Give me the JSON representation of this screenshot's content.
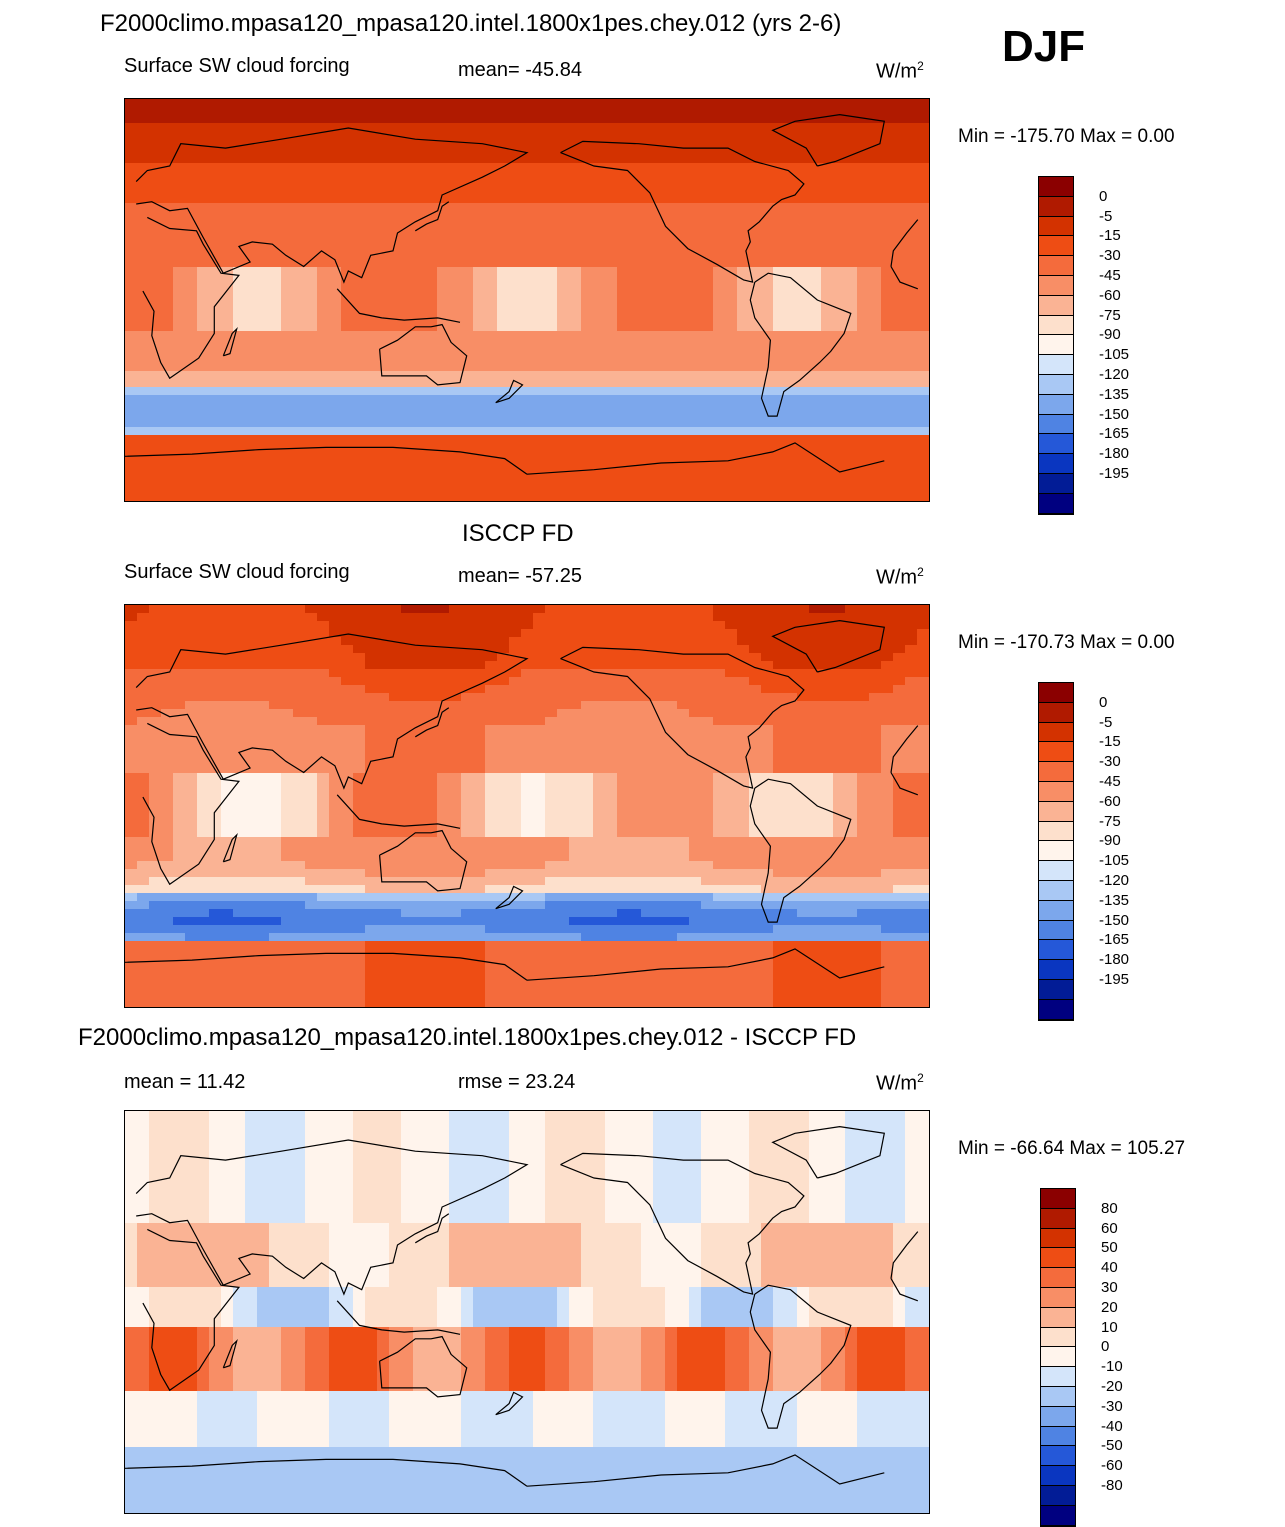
{
  "season": "DJF",
  "panels": [
    {
      "title": "F2000climo.mpasa120_mpasa120.intel.1800x1pes.chey.012 (yrs 2-6)",
      "left_label": "Surface SW cloud forcing",
      "center_label": "mean= -45.84",
      "units_base": "W/m",
      "units_sup": "2",
      "minmax": "Min = -175.70 Max =   0.00"
    },
    {
      "title": "ISCCP FD",
      "left_label": "Surface SW cloud forcing",
      "center_label": "mean= -57.25",
      "units_base": "W/m",
      "units_sup": "2",
      "minmax": "Min = -170.73 Max =   0.00"
    },
    {
      "title": "F2000climo.mpasa120_mpasa120.intel.1800x1pes.chey.012 - ISCCP FD",
      "left_label": "mean =  11.42",
      "center_label": "rmse =  23.24",
      "units_base": "W/m",
      "units_sup": "2",
      "minmax": "Min = -66.64 Max = 105.27"
    }
  ],
  "colorbar_field": {
    "labels": [
      "0",
      "-5",
      "-15",
      "-30",
      "-45",
      "-60",
      "-75",
      "-90",
      "-105",
      "-120",
      "-135",
      "-150",
      "-165",
      "-180",
      "-195"
    ],
    "colors": [
      "#8b0000",
      "#b01a00",
      "#d33200",
      "#ee4d14",
      "#f46b3c",
      "#f88e66",
      "#fab394",
      "#fde0cc",
      "#fff4ec",
      "#d4e5fa",
      "#a9c8f4",
      "#7ca7ec",
      "#4f83e3",
      "#2558d8",
      "#0a36c0",
      "#021c96",
      "#000080"
    ]
  },
  "colorbar_diff": {
    "labels": [
      "80",
      "60",
      "50",
      "40",
      "30",
      "20",
      "10",
      "0",
      "-10",
      "-20",
      "-30",
      "-40",
      "-50",
      "-60",
      "-80"
    ],
    "colors": [
      "#8b0000",
      "#b01a00",
      "#d33200",
      "#ee4d14",
      "#f46b3c",
      "#f88e66",
      "#fab394",
      "#fde0cc",
      "#fff4ec",
      "#d4e5fa",
      "#a9c8f4",
      "#7ca7ec",
      "#4f83e3",
      "#2558d8",
      "#0a36c0",
      "#021c96",
      "#000080"
    ]
  },
  "chart_data": [
    {
      "type": "heatmap",
      "title": "F2000climo.mpasa120_mpasa120.intel.1800x1pes.chey.012 (yrs 2-6)",
      "variable": "Surface SW cloud forcing",
      "units": "W/m2",
      "mean": -45.84,
      "min": -175.7,
      "max": 0.0,
      "contour_levels": [
        0,
        -5,
        -15,
        -30,
        -45,
        -60,
        -75,
        -90,
        -105,
        -120,
        -135,
        -150,
        -165,
        -180,
        -195
      ]
    },
    {
      "type": "heatmap",
      "title": "ISCCP FD",
      "variable": "Surface SW cloud forcing",
      "units": "W/m2",
      "mean": -57.25,
      "min": -170.73,
      "max": 0.0,
      "contour_levels": [
        0,
        -5,
        -15,
        -30,
        -45,
        -60,
        -75,
        -90,
        -105,
        -120,
        -135,
        -150,
        -165,
        -180,
        -195
      ]
    },
    {
      "type": "heatmap",
      "title": "F2000climo.mpasa120_mpasa120.intel.1800x1pes.chey.012 - ISCCP FD",
      "units": "W/m2",
      "mean": 11.42,
      "rmse": 23.24,
      "min": -66.64,
      "max": 105.27,
      "contour_levels": [
        80,
        60,
        50,
        40,
        30,
        20,
        10,
        0,
        -10,
        -20,
        -30,
        -40,
        -50,
        -60,
        -80
      ]
    }
  ]
}
